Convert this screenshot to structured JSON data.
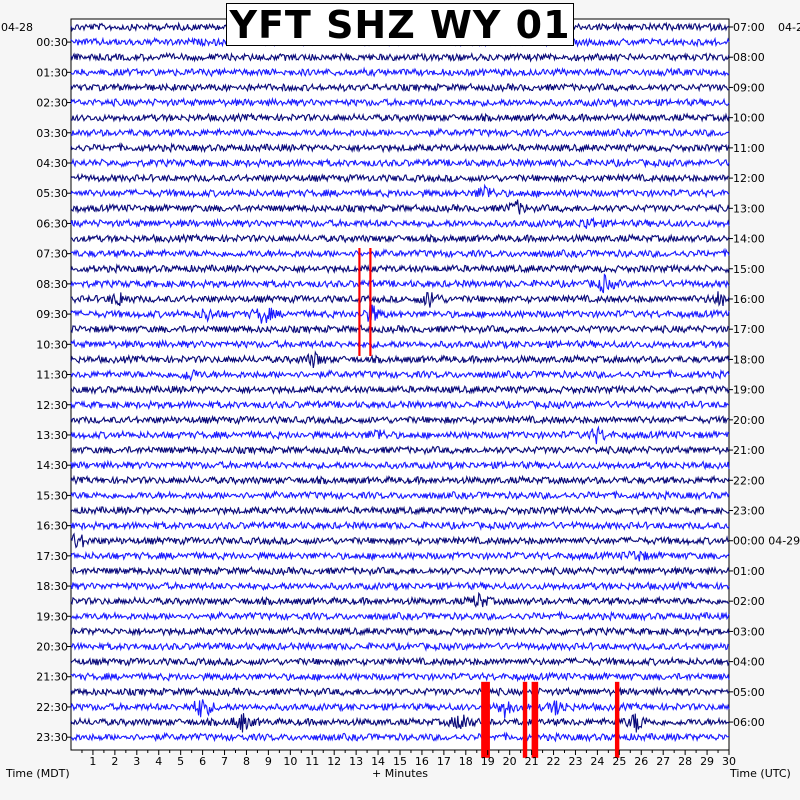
{
  "chart_data": {
    "type": "line",
    "title": "YFT SHZ WY 01",
    "left_date": "04-28",
    "right_date": "04-2",
    "xlabel": "+ Minutes",
    "left_axis_label": "Time (MDT)",
    "right_axis_label": "Time (UTC)",
    "xlim": [
      0,
      30
    ],
    "x_ticks": [
      "1",
      "2",
      "3",
      "4",
      "5",
      "6",
      "7",
      "8",
      "9",
      "10",
      "11",
      "12",
      "13",
      "14",
      "15",
      "16",
      "17",
      "18",
      "19",
      "20",
      "21",
      "22",
      "23",
      "24",
      "25",
      "26",
      "27",
      "28",
      "29",
      "30"
    ],
    "left_ticks": [
      "00:30",
      "01:30",
      "02:30",
      "03:30",
      "04:30",
      "05:30",
      "06:30",
      "07:30",
      "08:30",
      "09:30",
      "10:30",
      "11:30",
      "12:30",
      "13:30",
      "14:30",
      "15:30",
      "16:30",
      "17:30",
      "18:30",
      "19:30",
      "20:30",
      "21:30",
      "22:30",
      "23:30"
    ],
    "right_ticks": [
      "07:00",
      "08:00",
      "09:00",
      "10:00",
      "11:00",
      "12:00",
      "13:00",
      "14:00",
      "15:00",
      "16:00",
      "17:00",
      "18:00",
      "19:00",
      "20:00",
      "21:00",
      "22:00",
      "23:00",
      "00:00 04-29",
      "01:00",
      "02:00",
      "03:00",
      "04:00",
      "05:00",
      "06:00"
    ],
    "trace_colors": [
      "#0a0a7a",
      "#1a1aff"
    ],
    "highlight_color": "#ff0000",
    "trace_count": 48,
    "red_markers": [
      {
        "trace": 15,
        "start_min": 13.1,
        "end_min": 13.2
      },
      {
        "trace": 15,
        "start_min": 13.6,
        "end_min": 13.7
      },
      {
        "trace": 44,
        "start_min": 18.7,
        "end_min": 19.1
      },
      {
        "trace": 44,
        "start_min": 20.6,
        "end_min": 20.8
      },
      {
        "trace": 44,
        "start_min": 21.0,
        "end_min": 21.3
      },
      {
        "trace": 44,
        "start_min": 24.8,
        "end_min": 25.0
      }
    ],
    "events": [
      {
        "trace": 11,
        "minute": 18.9,
        "amp": 1.4
      },
      {
        "trace": 12,
        "minute": 20.3,
        "amp": 1.2
      },
      {
        "trace": 13,
        "minute": 23.6,
        "amp": 1.0
      },
      {
        "trace": 17,
        "minute": 24.3,
        "amp": 1.3
      },
      {
        "trace": 18,
        "minute": 2.2,
        "amp": 1.2
      },
      {
        "trace": 18,
        "minute": 16.4,
        "amp": 1.6
      },
      {
        "trace": 18,
        "minute": 29.6,
        "amp": 1.3
      },
      {
        "trace": 19,
        "minute": 8.8,
        "amp": 1.8
      },
      {
        "trace": 19,
        "minute": 13.7,
        "amp": 1.6
      },
      {
        "trace": 19,
        "minute": 6.2,
        "amp": 1.0
      },
      {
        "trace": 22,
        "minute": 11.1,
        "amp": 1.2
      },
      {
        "trace": 23,
        "minute": 5.4,
        "amp": 1.0
      },
      {
        "trace": 27,
        "minute": 24.0,
        "amp": 1.3
      },
      {
        "trace": 27,
        "minute": 14.0,
        "amp": 1.0
      },
      {
        "trace": 34,
        "minute": 0.3,
        "amp": 1.4
      },
      {
        "trace": 35,
        "minute": 25.8,
        "amp": 1.0
      },
      {
        "trace": 38,
        "minute": 18.6,
        "amp": 1.2
      },
      {
        "trace": 45,
        "minute": 6.0,
        "amp": 2.2
      },
      {
        "trace": 46,
        "minute": 7.8,
        "amp": 1.6
      },
      {
        "trace": 46,
        "minute": 17.8,
        "amp": 1.8
      },
      {
        "trace": 46,
        "minute": 25.8,
        "amp": 1.8
      },
      {
        "trace": 45,
        "minute": 19.8,
        "amp": 1.6
      },
      {
        "trace": 45,
        "minute": 22.2,
        "amp": 1.4
      }
    ]
  }
}
